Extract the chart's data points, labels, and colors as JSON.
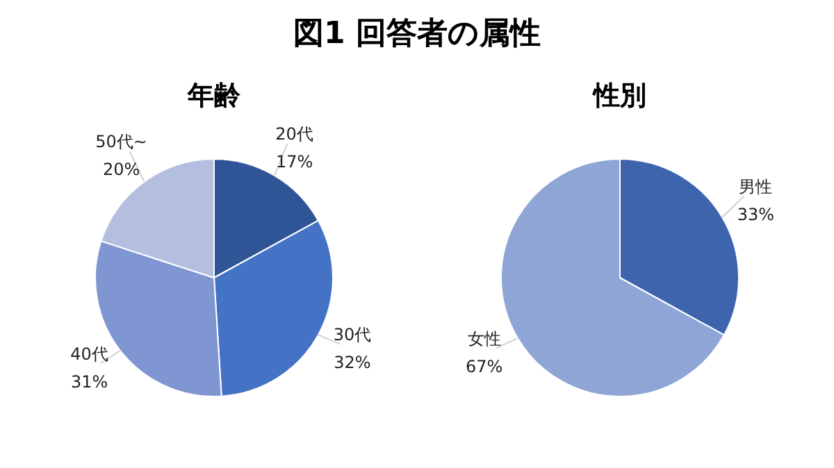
{
  "chart_data": [
    {
      "type": "pie",
      "title": "年齢",
      "annotations": [
        "図1 回答者の属性"
      ],
      "categories": [
        "20代",
        "30代",
        "40代",
        "50代~"
      ],
      "values": [
        17,
        32,
        31,
        20
      ],
      "colors": [
        "#2f5597",
        "#4472c4",
        "#7f96d2",
        "#b4bfe0"
      ],
      "value_labels": [
        "17%",
        "32%",
        "31%",
        "20%"
      ],
      "legend": false
    },
    {
      "type": "pie",
      "title": "性別",
      "categories": [
        "男性",
        "女性"
      ],
      "values": [
        33,
        67
      ],
      "colors": [
        "#3d64ad",
        "#8fa5d6"
      ],
      "value_labels": [
        "33%",
        "67%"
      ],
      "legend": false
    }
  ]
}
